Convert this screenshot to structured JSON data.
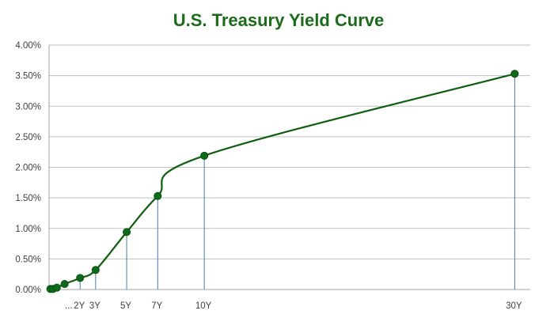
{
  "chart_data": {
    "type": "line",
    "title": "U.S. Treasury Yield Curve",
    "xlabel": "",
    "ylabel": "",
    "ylim": [
      0,
      0.04
    ],
    "y_ticks": [
      "0.00%",
      "0.50%",
      "1.00%",
      "1.50%",
      "2.00%",
      "2.50%",
      "3.00%",
      "3.50%",
      "4.00%"
    ],
    "x_tick_labels": [
      {
        "x": 0.5,
        "label": "..."
      },
      {
        "x": 2,
        "label": "2Y"
      },
      {
        "x": 3,
        "label": "3Y"
      },
      {
        "x": 5,
        "label": "5Y"
      },
      {
        "x": 7,
        "label": "7Y"
      },
      {
        "x": 10,
        "label": "10Y"
      },
      {
        "x": 30,
        "label": "30Y"
      }
    ],
    "xlim": [
      0,
      31
    ],
    "x": [
      0.083,
      0.25,
      0.5,
      1,
      2,
      3,
      5,
      7,
      10,
      30
    ],
    "values": [
      0.0001,
      0.0001,
      0.0003,
      0.0009,
      0.0019,
      0.0032,
      0.0094,
      0.0153,
      0.0219,
      0.0353
    ],
    "drop_lines_at": [
      2,
      3,
      5,
      7,
      10,
      30
    ],
    "grid": true,
    "legend": "none",
    "colors": {
      "line": "#0d5e0d",
      "marker": "#0d6a1a",
      "title": "#1a6b1a",
      "drop_line": "#4a7ab0",
      "grid": "#bfbfbf",
      "axis": "#a6a6a6"
    }
  }
}
